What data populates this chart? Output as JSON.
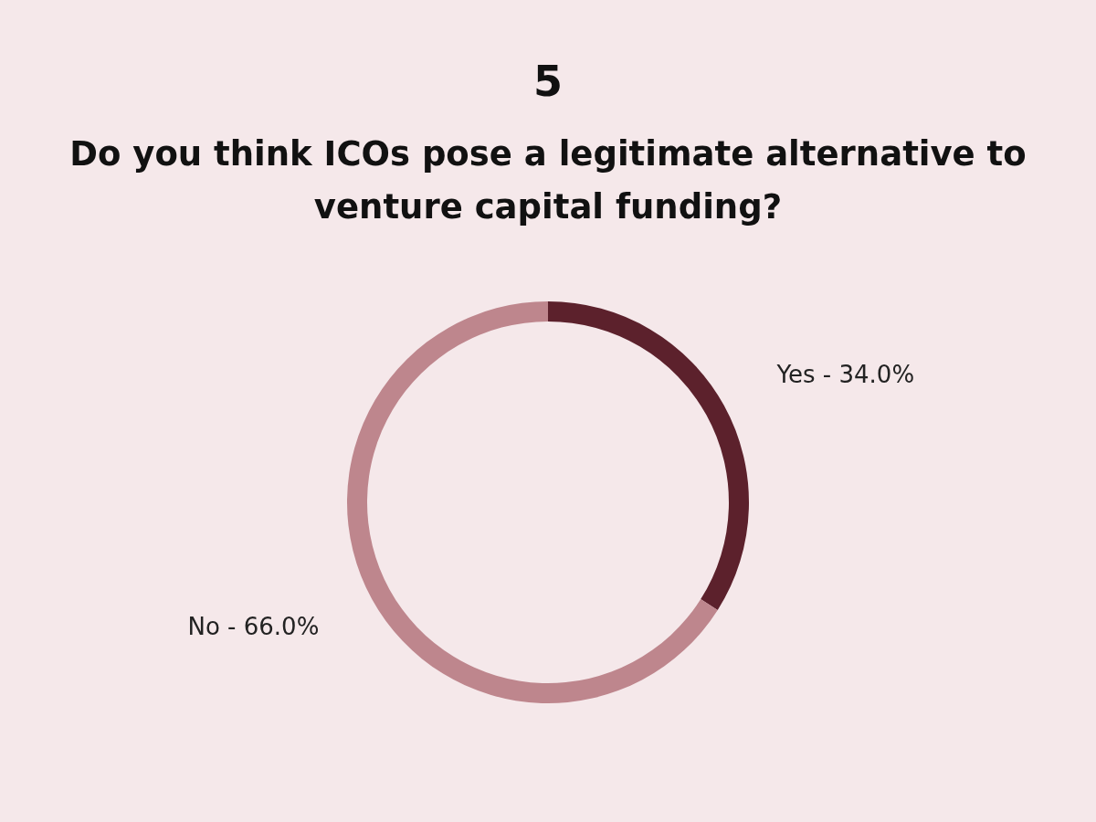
{
  "chart_data": {
    "type": "donut",
    "title": "5",
    "subtitle": "Do you think ICOs pose a legitimate alternative to venture capital funding?",
    "categories": [
      "Yes - 34.0%",
      "No - 66.0%"
    ],
    "values": [
      34.0,
      66.0
    ],
    "colors": [
      "#5c212c",
      "#be868d"
    ],
    "legend": false
  }
}
